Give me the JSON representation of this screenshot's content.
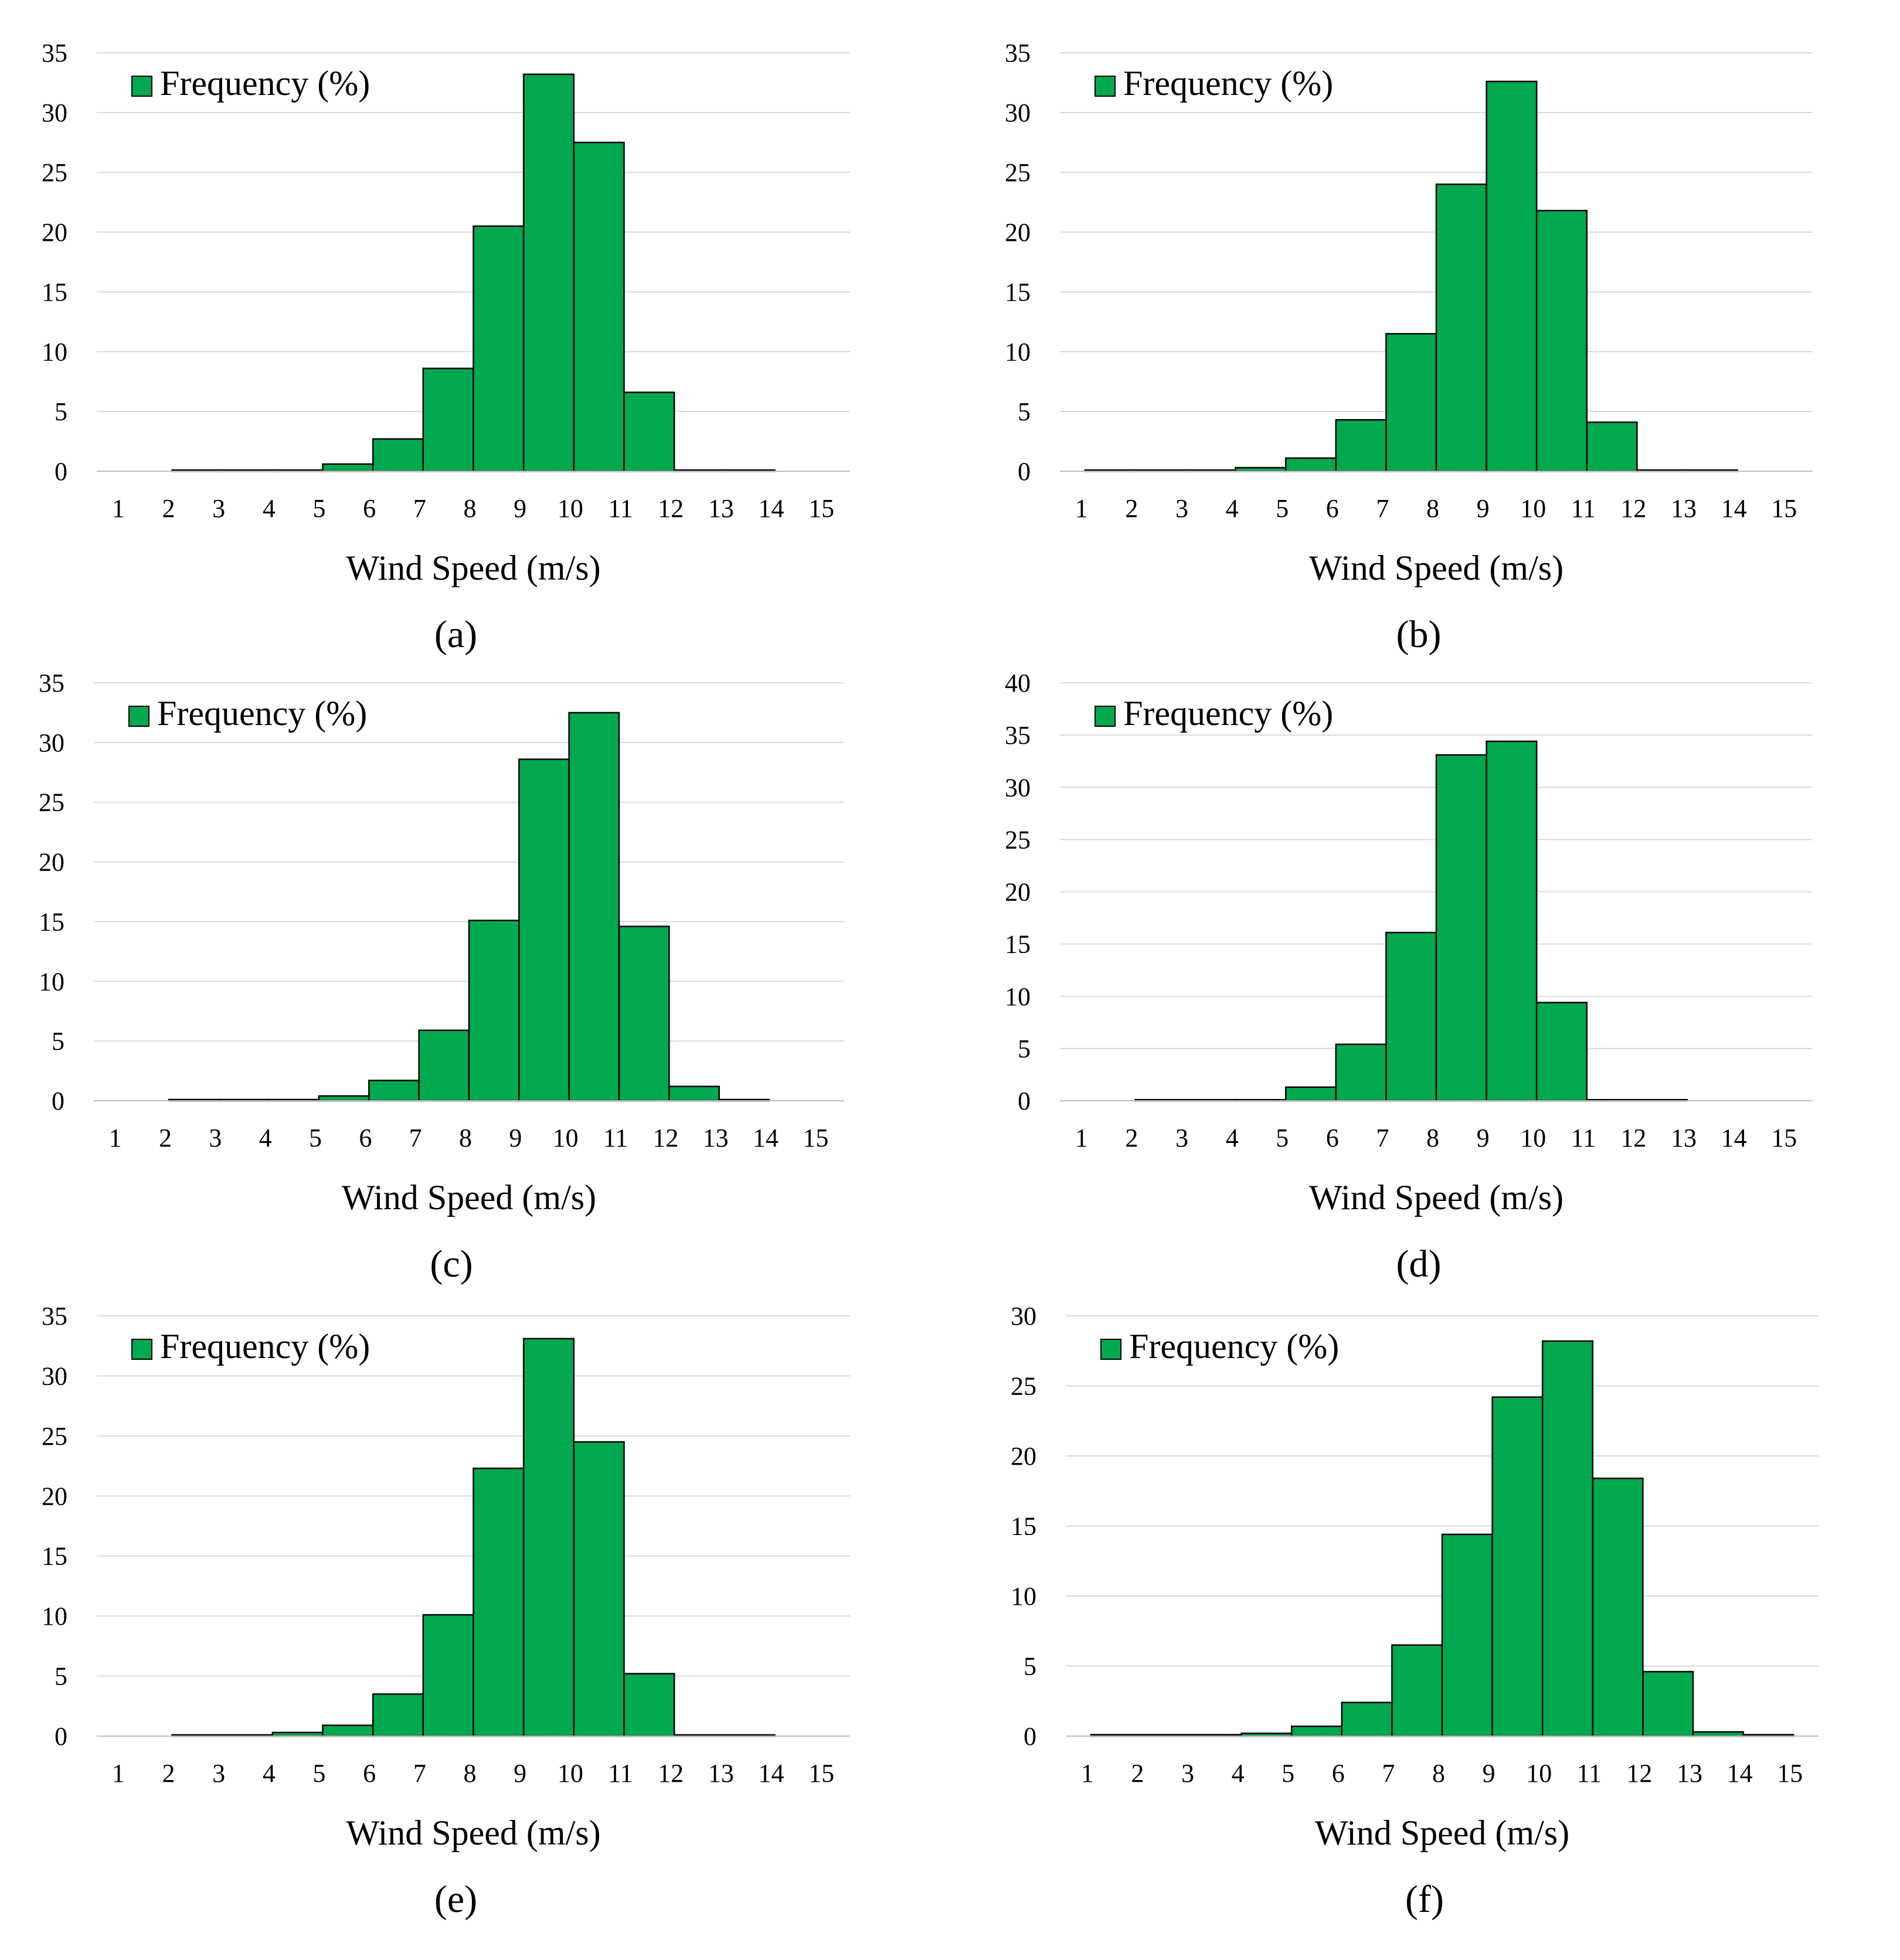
{
  "figure": {
    "background": "#ffffff",
    "bar_color": "#00A84F",
    "bar_edge_color": "#000000",
    "grid_color": "#D9D9D9"
  },
  "chart_data": [
    {
      "id": "a",
      "panel_label": "(a)",
      "type": "bar",
      "categories": [
        "1",
        "2",
        "3",
        "4",
        "5",
        "6",
        "7",
        "8",
        "9",
        "10",
        "11",
        "12",
        "13",
        "14",
        "15"
      ],
      "values": [
        0,
        0.1,
        0.1,
        0.1,
        0.6,
        2.7,
        8.6,
        20.5,
        33.2,
        27.5,
        6.6,
        0.1,
        0.1,
        0,
        0
      ],
      "ylim": [
        0,
        35
      ],
      "yticks": [
        "0",
        "5",
        "10",
        "15",
        "20",
        "25",
        "30",
        "35"
      ],
      "xlabel": "Wind Speed (m/s)",
      "ylabel": "",
      "legend": "Frequency (%)",
      "legend_position": "top-left",
      "grid": true
    },
    {
      "id": "b",
      "panel_label": "(b)",
      "type": "bar",
      "categories": [
        "1",
        "2",
        "3",
        "4",
        "5",
        "6",
        "7",
        "8",
        "9",
        "10",
        "11",
        "12",
        "13",
        "14",
        "15"
      ],
      "values": [
        0.1,
        0.1,
        0.1,
        0.3,
        1.1,
        4.3,
        11.5,
        24.0,
        32.6,
        21.8,
        4.1,
        0.1,
        0.1,
        0,
        0
      ],
      "ylim": [
        0,
        35
      ],
      "yticks": [
        "0",
        "5",
        "10",
        "15",
        "20",
        "25",
        "30",
        "35"
      ],
      "xlabel": "Wind Speed (m/s)",
      "ylabel": "",
      "legend": "Frequency (%)",
      "legend_position": "top-left",
      "grid": true
    },
    {
      "id": "c",
      "panel_label": "(c)",
      "type": "bar",
      "categories": [
        "1",
        "2",
        "3",
        "4",
        "5",
        "6",
        "7",
        "8",
        "9",
        "10",
        "11",
        "12",
        "13",
        "14",
        "15"
      ],
      "values": [
        0,
        0.1,
        0.1,
        0.1,
        0.4,
        1.7,
        5.9,
        15.1,
        28.6,
        32.5,
        14.6,
        1.2,
        0.1,
        0,
        0
      ],
      "ylim": [
        0,
        35
      ],
      "yticks": [
        "0",
        "5",
        "10",
        "15",
        "20",
        "25",
        "30",
        "35"
      ],
      "xlabel": "Wind Speed (m/s)",
      "ylabel": "",
      "legend": "Frequency (%)",
      "legend_position": "top-left",
      "grid": true
    },
    {
      "id": "d",
      "panel_label": "(d)",
      "type": "bar",
      "categories": [
        "1",
        "2",
        "3",
        "4",
        "5",
        "6",
        "7",
        "8",
        "9",
        "10",
        "11",
        "12",
        "13",
        "14",
        "15"
      ],
      "values": [
        0,
        0.1,
        0.1,
        0.1,
        1.3,
        5.4,
        16.1,
        33.1,
        34.4,
        9.4,
        0.1,
        0.1,
        0,
        0,
        0
      ],
      "ylim": [
        0,
        40
      ],
      "yticks": [
        "0",
        "5",
        "10",
        "15",
        "20",
        "25",
        "30",
        "35",
        "40"
      ],
      "xlabel": "Wind Speed (m/s)",
      "ylabel": "",
      "legend": "Frequency (%)",
      "legend_position": "top-left",
      "grid": true
    },
    {
      "id": "e",
      "panel_label": "(e)",
      "type": "bar",
      "categories": [
        "1",
        "2",
        "3",
        "4",
        "5",
        "6",
        "7",
        "8",
        "9",
        "10",
        "11",
        "12",
        "13",
        "14",
        "15"
      ],
      "values": [
        0,
        0.1,
        0.1,
        0.3,
        0.9,
        3.5,
        10.1,
        22.3,
        33.1,
        24.5,
        5.2,
        0.1,
        0.1,
        0,
        0
      ],
      "ylim": [
        0,
        35
      ],
      "yticks": [
        "0",
        "5",
        "10",
        "15",
        "20",
        "25",
        "30",
        "35"
      ],
      "xlabel": "Wind Speed (m/s)",
      "ylabel": "",
      "legend": "Frequency (%)",
      "legend_position": "top-left",
      "grid": true
    },
    {
      "id": "f",
      "panel_label": "(f)",
      "type": "bar",
      "categories": [
        "1",
        "2",
        "3",
        "4",
        "5",
        "6",
        "7",
        "8",
        "9",
        "10",
        "11",
        "12",
        "13",
        "14",
        "15"
      ],
      "values": [
        0.1,
        0.1,
        0.1,
        0.2,
        0.7,
        2.4,
        6.5,
        14.4,
        24.2,
        28.2,
        18.4,
        4.6,
        0.3,
        0.1,
        0
      ],
      "ylim": [
        0,
        30
      ],
      "yticks": [
        "0",
        "5",
        "10",
        "15",
        "20",
        "25",
        "30"
      ],
      "xlabel": "Wind Speed (m/s)",
      "ylabel": "",
      "legend": "Frequency (%)",
      "legend_position": "top-left",
      "grid": true
    }
  ]
}
